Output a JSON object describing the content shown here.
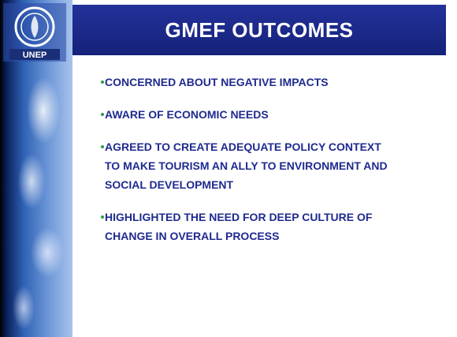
{
  "header": {
    "title": "GMEF OUTCOMES",
    "logo": "UNEP"
  },
  "bullets": [
    "CONCERNED ABOUT NEGATIVE IMPACTS",
    "AWARE OF ECONOMIC NEEDS",
    "AGREED TO CREATE ADEQUATE POLICY CONTEXT TO MAKE TOURISM AN ALLY TO ENVIRONMENT AND SOCIAL DEVELOPMENT",
    "HIGHLIGHTED THE NEED FOR DEEP CULTURE OF CHANGE IN OVERALL PROCESS"
  ]
}
